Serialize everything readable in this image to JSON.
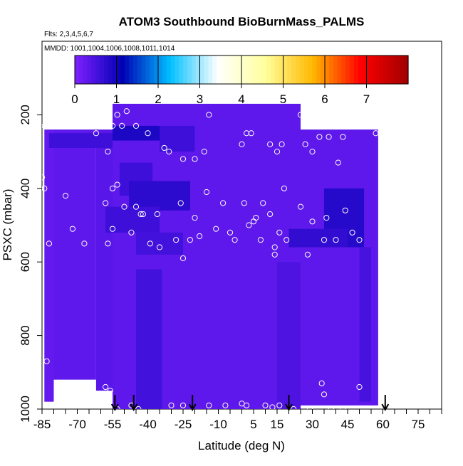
{
  "chart_data": {
    "type": "heatmap",
    "title": "ATOM3 Southbound BioBurnMass_PALMS",
    "flights_label": "Flts: 2,3,4,5,6,7",
    "dates_label": "MMDD: 1001,1004,1006,1008,1011,1014",
    "xlabel": "Latitude (deg N)",
    "ylabel": "PSXC (mbar)",
    "xlim": [
      -85,
      85
    ],
    "ylim": [
      1000,
      0
    ],
    "x_ticks": [
      -85,
      -70,
      -55,
      -40,
      -25,
      -10,
      5,
      15,
      30,
      45,
      60,
      75
    ],
    "x_tick_labels": [
      "-85",
      "-70",
      "-55",
      "-40",
      "-25",
      "-10",
      "5",
      "15",
      "30",
      "45",
      "60",
      "75"
    ],
    "y_ticks": [
      1000,
      800,
      600,
      400,
      200
    ],
    "y_tick_labels": [
      "1000",
      "800",
      "600",
      "400",
      "200"
    ],
    "colorbar": {
      "range": [
        0,
        8
      ],
      "ticks": [
        0,
        1,
        2,
        3,
        4,
        5,
        6,
        7
      ],
      "tick_labels": [
        "0",
        "1",
        "2",
        "3",
        "4",
        "5",
        "6",
        "7"
      ],
      "colors": [
        "#8020ff",
        "#0000b4",
        "#00c0ff",
        "#ffffff",
        "#ffff9c",
        "#ffb800",
        "#ff0000",
        "#a00000"
      ]
    },
    "arrow_latitudes": [
      -54,
      -46,
      -21,
      20,
      61
    ],
    "regions": [
      {
        "x0": -84,
        "x1": -80,
        "p0": 240,
        "p1": 980,
        "value": 0.25
      },
      {
        "x0": -80,
        "x1": -62,
        "p0": 240,
        "p1": 920,
        "value": 0.3
      },
      {
        "x0": -62,
        "x1": -54,
        "p0": 240,
        "p1": 950,
        "value": 0.35
      },
      {
        "x0": -55,
        "x1": 25,
        "p0": 170,
        "p1": 1000,
        "value": 0.3
      },
      {
        "x0": 25,
        "x1": 58,
        "p0": 240,
        "p1": 990,
        "value": 0.3
      },
      {
        "x0": -82,
        "x1": -55,
        "p0": 250,
        "p1": 290,
        "value": 0.6
      },
      {
        "x0": -55,
        "x1": -35,
        "p0": 230,
        "p1": 270,
        "value": 0.9
      },
      {
        "x0": -35,
        "x1": -20,
        "p0": 230,
        "p1": 300,
        "value": 0.6
      },
      {
        "x0": -52,
        "x1": -38,
        "p0": 330,
        "p1": 420,
        "value": 0.6
      },
      {
        "x0": -48,
        "x1": -22,
        "p0": 380,
        "p1": 460,
        "value": 0.75
      },
      {
        "x0": -58,
        "x1": -35,
        "p0": 450,
        "p1": 520,
        "value": 0.6
      },
      {
        "x0": -45,
        "x1": -25,
        "p0": 520,
        "p1": 580,
        "value": 0.55
      },
      {
        "x0": -45,
        "x1": -34,
        "p0": 620,
        "p1": 1000,
        "value": 0.55
      },
      {
        "x0": 35,
        "x1": 52,
        "p0": 400,
        "p1": 560,
        "value": 0.8
      },
      {
        "x0": 20,
        "x1": 45,
        "p0": 510,
        "p1": 560,
        "value": 0.7
      },
      {
        "x0": 50,
        "x1": 55,
        "p0": 560,
        "p1": 980,
        "value": 0.5
      },
      {
        "x0": 15,
        "x1": 25,
        "p0": 600,
        "p1": 1000,
        "value": 0.45
      }
    ],
    "samples": [
      [
        -84,
        230
      ],
      [
        -80,
        230
      ],
      [
        -75,
        230
      ],
      [
        -70,
        230
      ],
      [
        -66,
        230
      ],
      [
        -62,
        250
      ],
      [
        -58,
        230
      ],
      [
        -55,
        230
      ],
      [
        -53,
        200
      ],
      [
        -51,
        230
      ],
      [
        -49,
        190
      ],
      [
        -45,
        230
      ],
      [
        -40,
        250
      ],
      [
        -33,
        290
      ],
      [
        -31,
        300
      ],
      [
        -25,
        320
      ],
      [
        -20,
        320
      ],
      [
        -16,
        300
      ],
      [
        -14,
        200
      ],
      [
        0,
        280
      ],
      [
        2,
        250
      ],
      [
        4,
        250
      ],
      [
        12,
        280
      ],
      [
        15,
        300
      ],
      [
        17,
        280
      ],
      [
        25,
        200
      ],
      [
        27,
        280
      ],
      [
        30,
        300
      ],
      [
        33,
        260
      ],
      [
        37,
        260
      ],
      [
        41,
        330
      ],
      [
        43,
        260
      ],
      [
        57,
        250
      ],
      [
        59,
        250
      ],
      [
        -85,
        370
      ],
      [
        -84,
        400
      ],
      [
        -75,
        420
      ],
      [
        -58,
        440
      ],
      [
        -57,
        300
      ],
      [
        -55,
        400
      ],
      [
        -53,
        390
      ],
      [
        -50,
        450
      ],
      [
        -45,
        450
      ],
      [
        -42,
        470
      ],
      [
        -36,
        470
      ],
      [
        -26,
        440
      ],
      [
        -20,
        480
      ],
      [
        -15,
        410
      ],
      [
        -8,
        440
      ],
      [
        -5,
        520
      ],
      [
        1,
        440
      ],
      [
        5,
        490
      ],
      [
        6,
        480
      ],
      [
        9,
        440
      ],
      [
        12,
        470
      ],
      [
        14,
        560
      ],
      [
        16,
        520
      ],
      [
        18,
        400
      ],
      [
        25,
        450
      ],
      [
        30,
        490
      ],
      [
        36,
        480
      ],
      [
        40,
        540
      ],
      [
        44,
        460
      ],
      [
        47,
        520
      ],
      [
        50,
        540
      ],
      [
        -82,
        550
      ],
      [
        -72,
        510
      ],
      [
        -67,
        550
      ],
      [
        -57,
        550
      ],
      [
        -55,
        510
      ],
      [
        -47,
        520
      ],
      [
        -43,
        470
      ],
      [
        -39,
        550
      ],
      [
        -35,
        560
      ],
      [
        -28,
        540
      ],
      [
        -25,
        590
      ],
      [
        -22,
        540
      ],
      [
        -18,
        530
      ],
      [
        -11,
        510
      ],
      [
        -3,
        540
      ],
      [
        3,
        500
      ],
      [
        8,
        540
      ],
      [
        14,
        580
      ],
      [
        19,
        540
      ],
      [
        28,
        580
      ],
      [
        35,
        540
      ],
      [
        -83,
        870
      ],
      [
        -70,
        950
      ],
      [
        -58,
        940
      ],
      [
        -56,
        950
      ],
      [
        -53,
        1000
      ],
      [
        -47,
        990
      ],
      [
        -44,
        1000
      ],
      [
        -30,
        990
      ],
      [
        -25,
        990
      ],
      [
        -14,
        990
      ],
      [
        -7,
        990
      ],
      [
        0,
        985
      ],
      [
        2,
        990
      ],
      [
        10,
        990
      ],
      [
        13,
        995
      ],
      [
        16,
        990
      ],
      [
        22,
        1000
      ],
      [
        29,
        1000
      ],
      [
        34,
        930
      ],
      [
        35,
        960
      ],
      [
        38,
        1000
      ],
      [
        43,
        1000
      ],
      [
        50,
        940
      ]
    ]
  }
}
